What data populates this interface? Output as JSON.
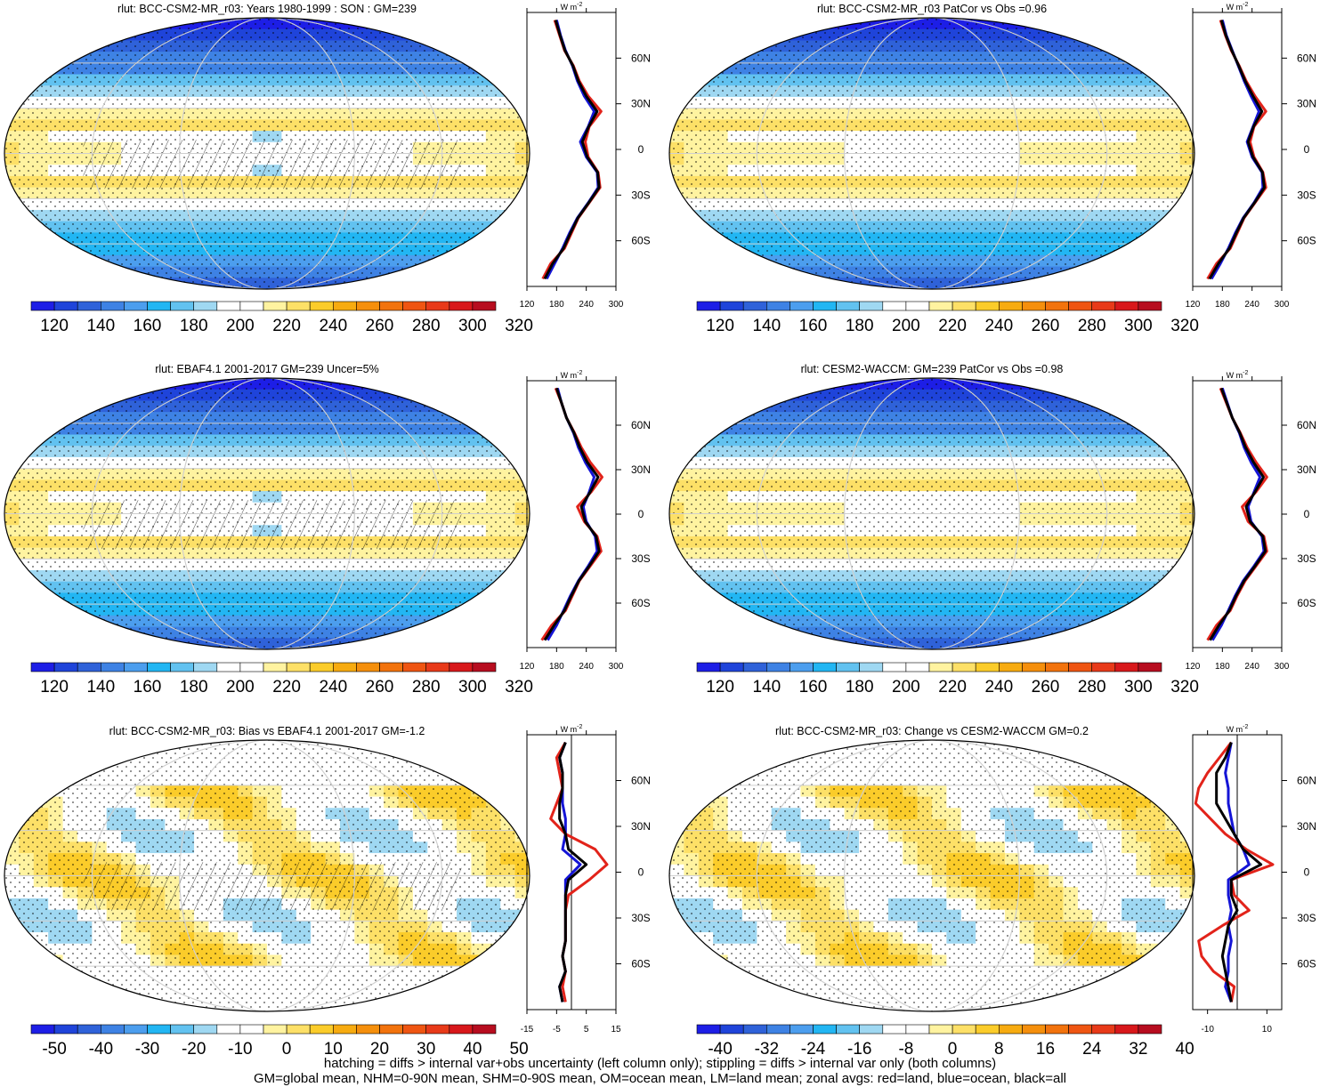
{
  "colors": {
    "abs_levels": [
      "#1d1ee6",
      "#1f44da",
      "#2f62d9",
      "#3e82e4",
      "#4c9eee",
      "#22b6f3",
      "#62c2f0",
      "#9fd8f2",
      "#ffffff",
      "#ffffff",
      "#fff3a0",
      "#fde067",
      "#fbcc2a",
      "#f7ab10",
      "#f58f0c",
      "#f2730d",
      "#ef5512",
      "#e83a19",
      "#d8181b",
      "#b70d1f"
    ],
    "diff_levels": [
      "#1d1ee6",
      "#1f44da",
      "#2f62d9",
      "#3e82e4",
      "#4c9eee",
      "#22b6f3",
      "#62c2f0",
      "#9fd8f2",
      "#ffffff",
      "#ffffff",
      "#fff3a0",
      "#fde067",
      "#fbcc2a",
      "#f7ab10",
      "#f58f0c",
      "#f2730d",
      "#ef5512",
      "#e83a19",
      "#d8181b",
      "#b70d1f"
    ],
    "land_line": "#e2231a",
    "ocean_line": "#1414d6",
    "all_line": "#000000"
  },
  "footer": {
    "line1": "hatching = diffs > internal var+obs uncertainty (left column only); stippling = diffs > internal var only (both columns)",
    "line2": "GM=global mean, NHM=0-90N mean, SHM=0-90S mean, OM=ocean mean, LM=land mean; zonal avgs: red=land, blue=ocean, black=all"
  },
  "chart_data": [
    {
      "type": "heatmap",
      "title": "rlut: BCC-CSM2-MR_r03: Years 1980-1999 : SON : GM=239",
      "colorbar": {
        "ticks": [
          "120",
          "140",
          "160",
          "180",
          "200",
          "220",
          "240",
          "260",
          "280",
          "300",
          "320"
        ]
      },
      "zonal_mean": {
        "unit": "W m",
        "unit_exp": "-2",
        "xlim": [
          120,
          300
        ],
        "xticks": [
          "120",
          "180",
          "240",
          "300"
        ],
        "lat_ticks": [
          "60N",
          "30N",
          "0",
          "30S",
          "60S"
        ],
        "lat": [
          85,
          75,
          65,
          55,
          45,
          35,
          25,
          15,
          5,
          -5,
          -15,
          -25,
          -35,
          -45,
          -55,
          -65,
          -75,
          -85
        ],
        "land": [
          176,
          186,
          196,
          214,
          226,
          244,
          270,
          246,
          238,
          244,
          264,
          268,
          246,
          224,
          210,
          196,
          168,
          152
        ],
        "ocean": [
          180,
          188,
          198,
          212,
          222,
          236,
          256,
          244,
          228,
          240,
          262,
          264,
          244,
          222,
          206,
          192,
          176,
          160
        ],
        "all": [
          178,
          187,
          197,
          213,
          224,
          240,
          262,
          245,
          232,
          242,
          263,
          266,
          245,
          223,
          208,
          194,
          172,
          156
        ]
      }
    },
    {
      "type": "heatmap",
      "title": "rlut: BCC-CSM2-MR_r03 PatCor vs Obs =0.96",
      "colorbar": {
        "ticks": [
          "120",
          "140",
          "160",
          "180",
          "200",
          "220",
          "240",
          "260",
          "280",
          "300",
          "320"
        ]
      },
      "zonal_mean": {
        "unit": "W m",
        "unit_exp": "-2",
        "xlim": [
          120,
          300
        ],
        "xticks": [
          "120",
          "180",
          "240",
          "300"
        ],
        "lat_ticks": [
          "60N",
          "30N",
          "0",
          "30S",
          "60S"
        ],
        "lat": [
          85,
          75,
          65,
          55,
          45,
          35,
          25,
          15,
          5,
          -5,
          -15,
          -25,
          -35,
          -45,
          -55,
          -65,
          -75,
          -85
        ],
        "land": [
          176,
          186,
          198,
          214,
          228,
          246,
          268,
          244,
          236,
          244,
          262,
          268,
          246,
          224,
          210,
          196,
          168,
          150
        ],
        "ocean": [
          180,
          188,
          200,
          212,
          224,
          238,
          254,
          242,
          230,
          240,
          260,
          262,
          244,
          222,
          206,
          192,
          176,
          158
        ],
        "all": [
          178,
          187,
          199,
          213,
          226,
          242,
          260,
          243,
          232,
          242,
          261,
          265,
          245,
          223,
          208,
          194,
          172,
          154
        ]
      }
    },
    {
      "type": "heatmap",
      "title": "rlut: EBAF4.1 2001-2017 GM=239 Uncer=5%",
      "colorbar": {
        "ticks": [
          "120",
          "140",
          "160",
          "180",
          "200",
          "220",
          "240",
          "260",
          "280",
          "300",
          "320"
        ]
      },
      "zonal_mean": {
        "unit": "W m",
        "unit_exp": "-2",
        "xlim": [
          120,
          300
        ],
        "xticks": [
          "120",
          "180",
          "240",
          "300"
        ],
        "lat_ticks": [
          "60N",
          "30N",
          "0",
          "30S",
          "60S"
        ],
        "lat": [
          85,
          75,
          65,
          55,
          45,
          35,
          25,
          15,
          5,
          -5,
          -15,
          -25,
          -35,
          -45,
          -55,
          -65,
          -75,
          -85
        ],
        "land": [
          178,
          190,
          200,
          216,
          230,
          248,
          272,
          250,
          222,
          236,
          262,
          270,
          248,
          226,
          212,
          198,
          170,
          150
        ],
        "ocean": [
          182,
          190,
          200,
          214,
          224,
          238,
          256,
          246,
          234,
          240,
          258,
          262,
          244,
          224,
          208,
          194,
          180,
          162
        ],
        "all": [
          180,
          190,
          200,
          215,
          227,
          242,
          264,
          248,
          230,
          238,
          260,
          266,
          246,
          225,
          210,
          196,
          175,
          156
        ]
      }
    },
    {
      "type": "heatmap",
      "title": "rlut: CESM2-WACCM: GM=239 PatCor vs Obs =0.98",
      "colorbar": {
        "ticks": [
          "120",
          "140",
          "160",
          "180",
          "200",
          "220",
          "240",
          "260",
          "280",
          "300",
          "320"
        ]
      },
      "zonal_mean": {
        "unit": "W m",
        "unit_exp": "-2",
        "xlim": [
          120,
          300
        ],
        "xticks": [
          "120",
          "180",
          "240",
          "300"
        ],
        "lat_ticks": [
          "60N",
          "30N",
          "0",
          "30S",
          "60S"
        ],
        "lat": [
          85,
          75,
          65,
          55,
          45,
          35,
          25,
          15,
          5,
          -5,
          -15,
          -25,
          -35,
          -45,
          -55,
          -65,
          -75,
          -85
        ],
        "land": [
          176,
          188,
          200,
          216,
          230,
          248,
          270,
          248,
          220,
          232,
          264,
          270,
          248,
          226,
          210,
          196,
          168,
          150
        ],
        "ocean": [
          180,
          190,
          200,
          214,
          224,
          238,
          256,
          244,
          232,
          238,
          260,
          264,
          244,
          222,
          206,
          192,
          178,
          160
        ],
        "all": [
          178,
          189,
          200,
          215,
          227,
          243,
          263,
          246,
          228,
          236,
          262,
          267,
          246,
          224,
          208,
          194,
          173,
          155
        ]
      }
    },
    {
      "type": "heatmap",
      "title": "rlut: BCC-CSM2-MR_r03: Bias vs EBAF4.1 2001-2017  GM=-1.2",
      "colorbar": {
        "ticks": [
          "-50",
          "-40",
          "-30",
          "-20",
          "-10",
          "0",
          "10",
          "20",
          "30",
          "40",
          "50"
        ]
      },
      "zonal_mean": {
        "unit": "W m",
        "unit_exp": "-2",
        "xlim": [
          -15,
          15
        ],
        "xticks": [
          "-15",
          "-5",
          "5",
          "15"
        ],
        "lat_ticks": [
          "60N",
          "30N",
          "0",
          "30S",
          "60S"
        ],
        "lat": [
          85,
          75,
          65,
          55,
          45,
          35,
          25,
          15,
          5,
          -5,
          -15,
          -25,
          -35,
          -45,
          -55,
          -65,
          -75,
          -85
        ],
        "land": [
          -2,
          -5,
          -4,
          -3,
          -5,
          -7,
          -2,
          8,
          12,
          6,
          -1,
          -2,
          -2,
          -2,
          -3,
          -2,
          -3,
          -2
        ],
        "ocean": [
          -2,
          -4,
          -3,
          -3,
          -3,
          -2,
          -2,
          -3,
          3,
          -2,
          -2,
          -2,
          -2,
          -2,
          -3,
          -2,
          -4,
          -3
        ],
        "all": [
          -2,
          -4,
          -3,
          -3,
          -4,
          -4,
          -2,
          -1,
          5,
          -1,
          -2,
          -2,
          -2,
          -2,
          -3,
          -2,
          -4,
          -3
        ]
      }
    },
    {
      "type": "heatmap",
      "title": "rlut: BCC-CSM2-MR_r03: Change vs CESM2-WACCM GM=0.2",
      "colorbar": {
        "ticks": [
          "-40",
          "-32",
          "-24",
          "-16",
          "-8",
          "0",
          "8",
          "16",
          "24",
          "32",
          "40"
        ]
      },
      "zonal_mean": {
        "unit": "W m",
        "unit_exp": "-2",
        "xlim": [
          -15,
          15
        ],
        "xticks": [
          "-10",
          "10"
        ],
        "lat_ticks": [
          "60N",
          "30N",
          "0",
          "30S",
          "60S"
        ],
        "lat": [
          85,
          75,
          65,
          55,
          45,
          35,
          25,
          15,
          5,
          -5,
          -15,
          -25,
          -35,
          -45,
          -55,
          -65,
          -75,
          -85
        ],
        "land": [
          -2,
          -6,
          -10,
          -13,
          -14,
          -9,
          -4,
          3,
          12,
          -2,
          -1,
          4,
          -5,
          -13,
          -12,
          -8,
          -1,
          -2
        ],
        "ocean": [
          -2,
          -3,
          -4,
          -3,
          -3,
          -2,
          -1,
          2,
          4,
          -3,
          -3,
          -2,
          -3,
          -2,
          -3,
          -3,
          -4,
          -2
        ],
        "all": [
          -2,
          -4,
          -7,
          -7,
          -7,
          -4,
          -1,
          2,
          8,
          -2,
          -2,
          0,
          -3,
          -4,
          -5,
          -4,
          -3,
          -2
        ]
      }
    }
  ]
}
